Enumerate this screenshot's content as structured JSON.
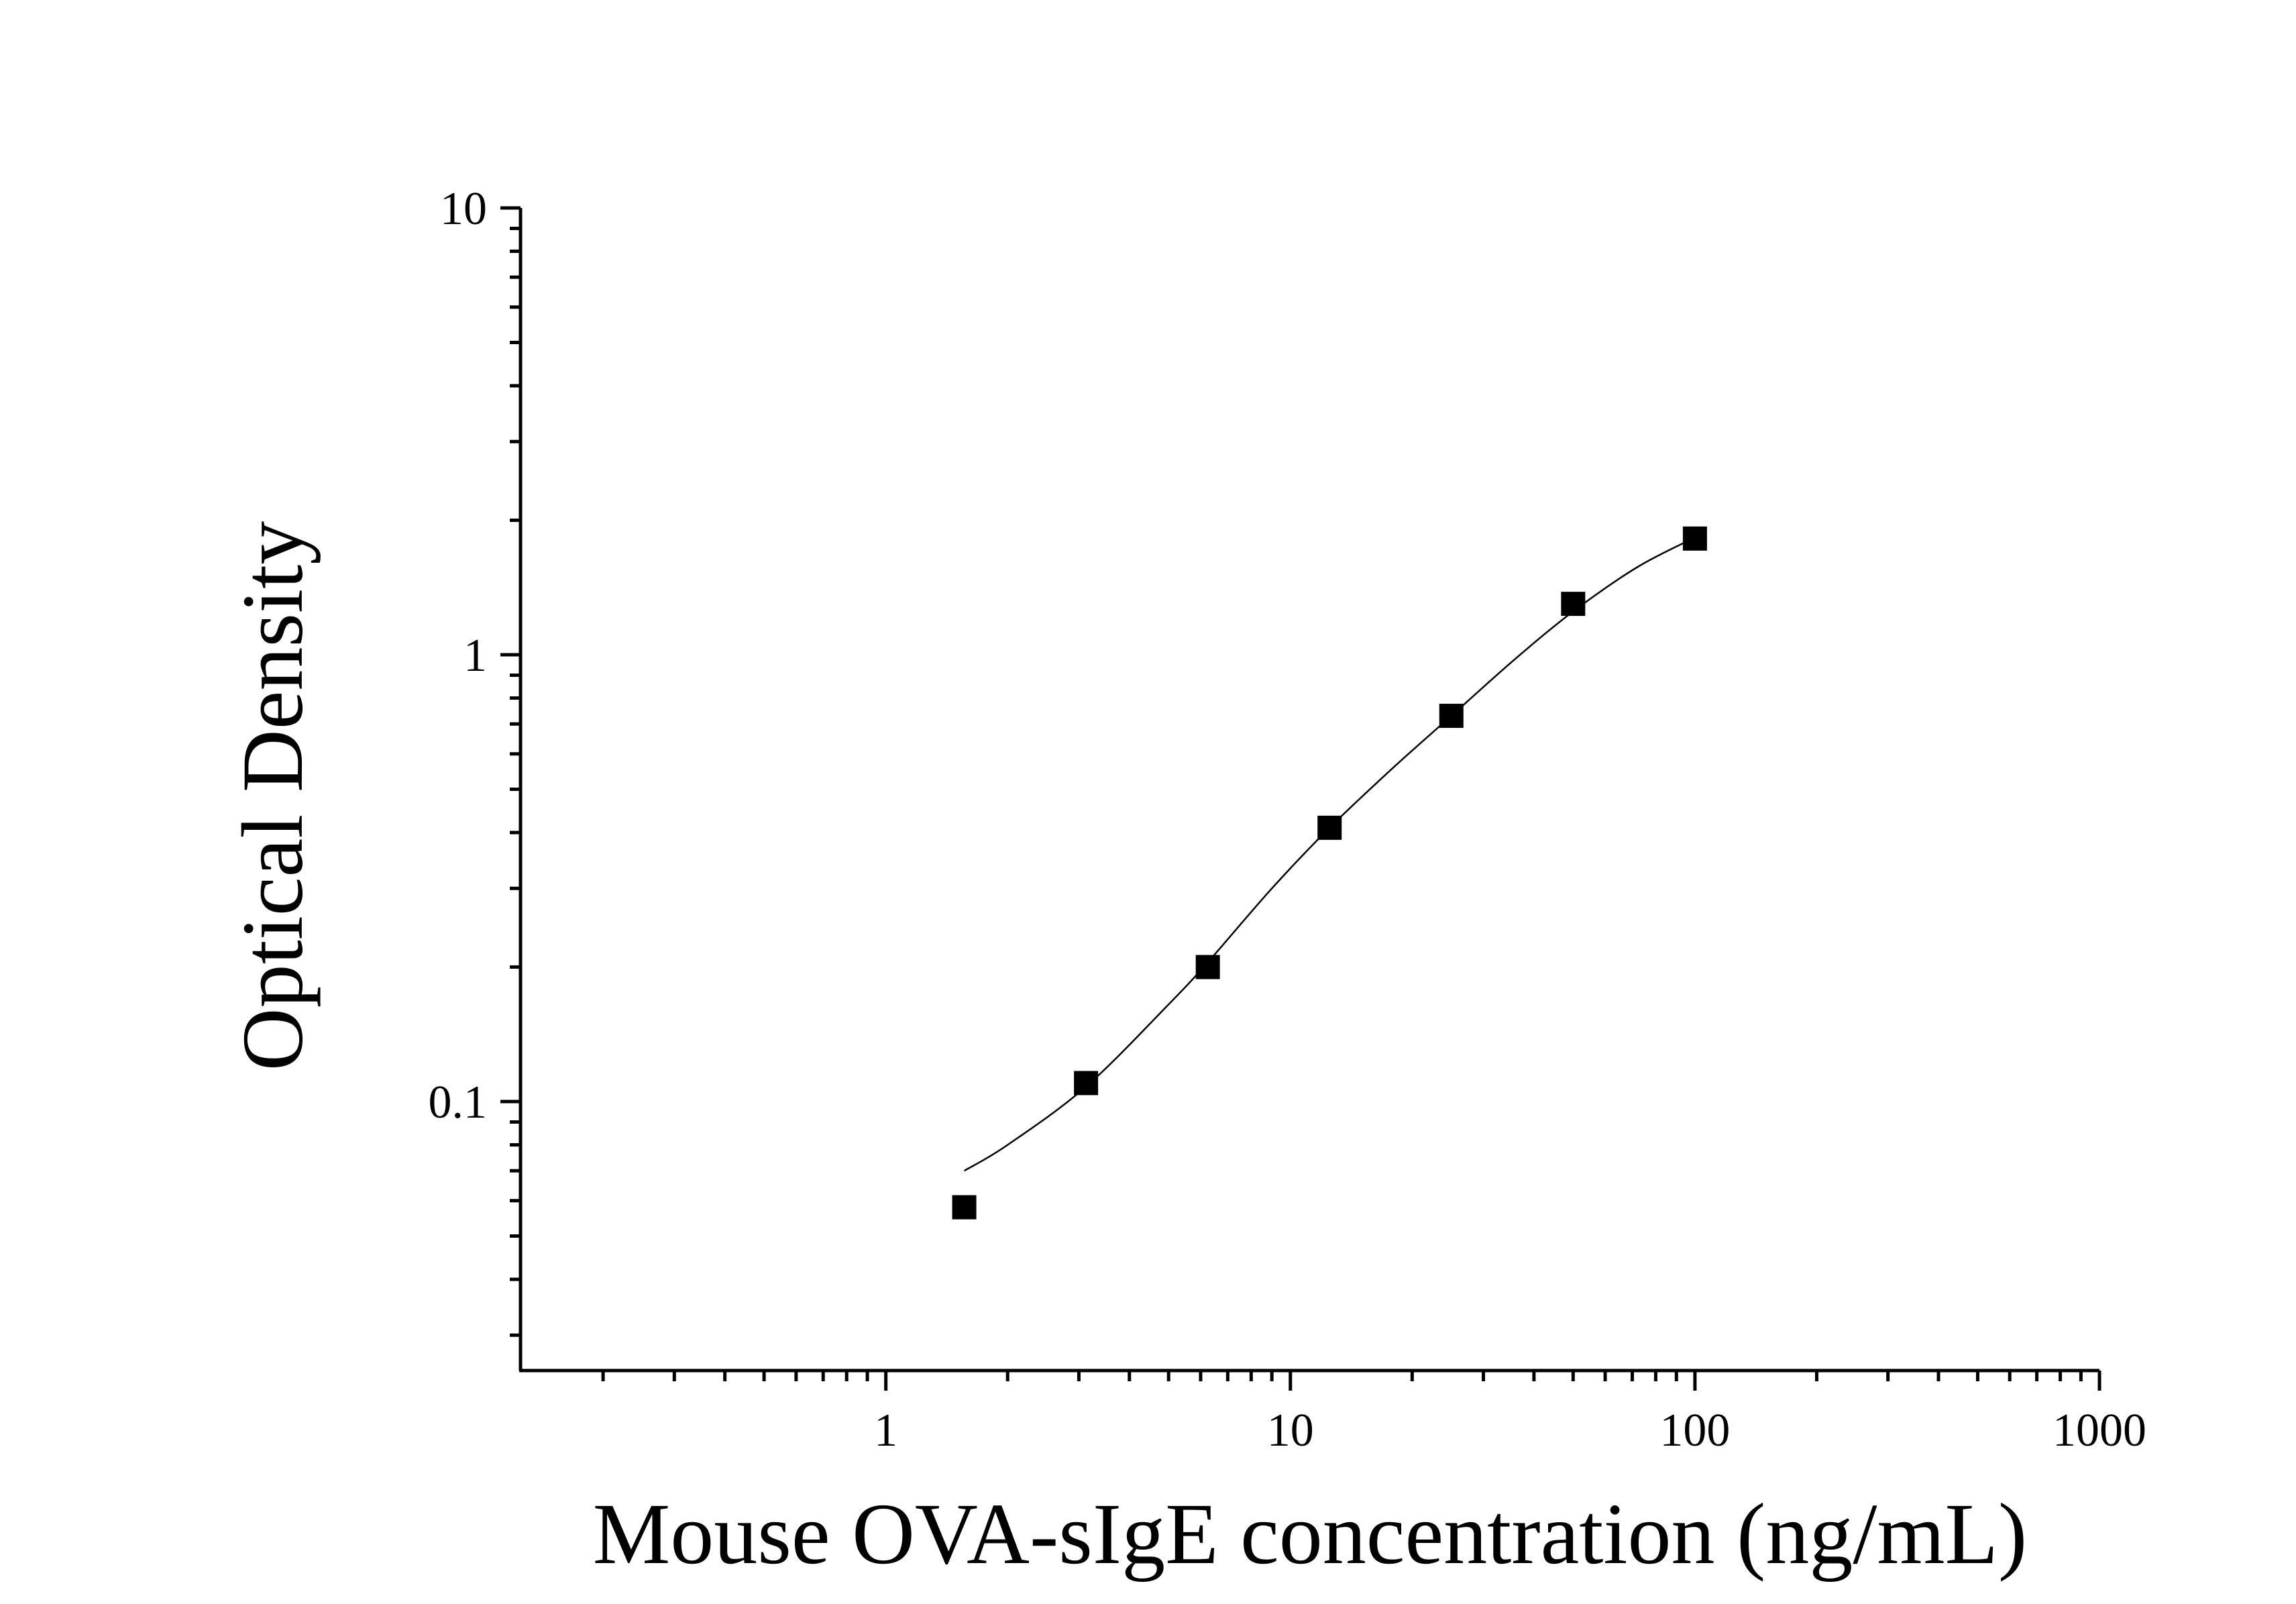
{
  "chart_data": {
    "type": "scatter",
    "title": "",
    "xlabel": "Mouse OVA-sIgE concentration (ng/mL)",
    "ylabel": "Optical Density",
    "xscale": "log",
    "yscale": "log",
    "xlim": [
      0.125,
      1000
    ],
    "ylim": [
      0.025,
      10
    ],
    "xticks": [
      "1",
      "10",
      "100",
      "1000"
    ],
    "yticks": [
      "0.1",
      "1",
      "10"
    ],
    "grid": false,
    "legend": "none",
    "series": [
      {
        "x": [
          1.5625,
          3.125,
          6.25,
          12.5,
          25,
          50,
          100
        ],
        "y": [
          0.058,
          0.11,
          0.2,
          0.41,
          0.73,
          1.3,
          1.82
        ],
        "marker": "square",
        "color": "#000000"
      }
    ],
    "fit_curve": {
      "type": "4PL",
      "x": [
        1.5625,
        2,
        3.125,
        5,
        6.25,
        9,
        12.5,
        18,
        25,
        36,
        50,
        72,
        100
      ],
      "y": [
        0.07,
        0.08,
        0.108,
        0.165,
        0.205,
        0.3,
        0.41,
        0.56,
        0.73,
        0.98,
        1.25,
        1.57,
        1.83
      ]
    }
  }
}
